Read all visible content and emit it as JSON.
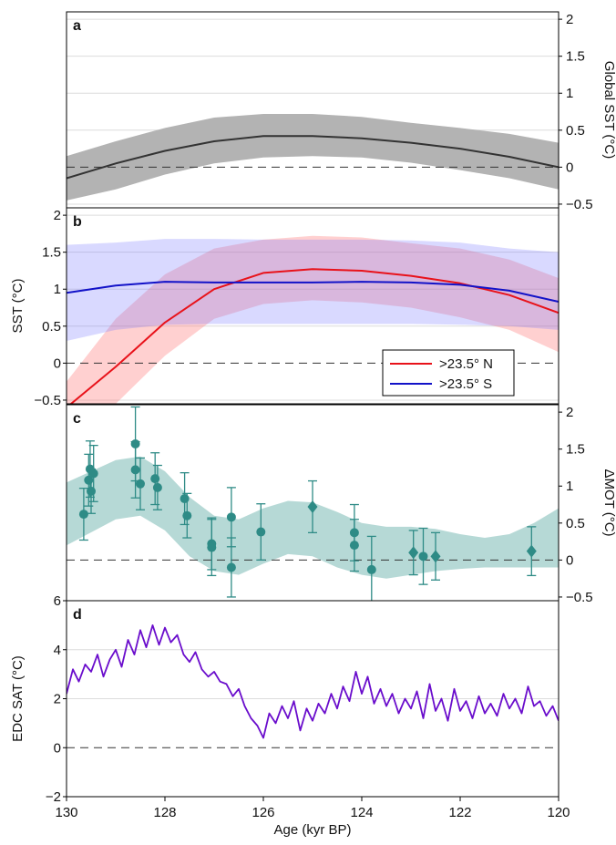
{
  "figure": {
    "xlabel": "Age (kyr BP)"
  },
  "chart_data": [
    {
      "panel": "a",
      "type": "line",
      "ylabel": "Global SST (°C)",
      "ylabel_side": "right",
      "ylim": [
        -0.55,
        2.1
      ],
      "yticks": [
        -0.5,
        0,
        0.5,
        1,
        1.5,
        2
      ],
      "xlim": [
        130,
        120
      ],
      "grid": true,
      "zero_line": true,
      "series": [
        {
          "color": "#333333",
          "band_color": "#b3b3b3",
          "x": [
            130,
            129,
            128,
            127,
            126,
            125,
            124,
            123,
            122,
            121,
            120
          ],
          "y": [
            -0.15,
            0.05,
            0.22,
            0.35,
            0.42,
            0.42,
            0.39,
            0.33,
            0.25,
            0.14,
            0.0
          ],
          "lower": [
            -0.45,
            -0.3,
            -0.1,
            0.05,
            0.13,
            0.15,
            0.13,
            0.06,
            -0.04,
            -0.15,
            -0.3
          ],
          "upper": [
            0.15,
            0.35,
            0.53,
            0.67,
            0.72,
            0.72,
            0.68,
            0.6,
            0.53,
            0.45,
            0.33
          ]
        }
      ]
    },
    {
      "panel": "b",
      "type": "line",
      "ylabel": "SST (°C)",
      "ylabel_side": "left",
      "ylim": [
        -0.55,
        2.1
      ],
      "yticks": [
        -0.5,
        0,
        0.5,
        1,
        1.5,
        2
      ],
      "xlim": [
        130,
        120
      ],
      "grid": true,
      "zero_line": true,
      "legend_position": "bottom-right",
      "series": [
        {
          "name": ">23.5° N",
          "color": "#e8121a",
          "band_color": "rgba(255,110,110,0.32)",
          "x": [
            130,
            129,
            128,
            127,
            126,
            125,
            124,
            123,
            122,
            121,
            120
          ],
          "y": [
            -0.6,
            -0.05,
            0.55,
            1.0,
            1.22,
            1.27,
            1.25,
            1.18,
            1.08,
            0.92,
            0.68
          ],
          "lower": [
            -0.95,
            -0.55,
            0.1,
            0.6,
            0.8,
            0.85,
            0.82,
            0.75,
            0.62,
            0.45,
            0.15
          ],
          "upper": [
            -0.25,
            0.6,
            1.2,
            1.55,
            1.67,
            1.72,
            1.7,
            1.62,
            1.55,
            1.4,
            1.15
          ]
        },
        {
          "name": ">23.5° S",
          "color": "#1212c8",
          "band_color": "rgba(120,120,255,0.28)",
          "x": [
            130,
            129,
            128,
            127,
            126,
            125,
            124,
            123,
            122,
            121,
            120
          ],
          "y": [
            0.95,
            1.05,
            1.1,
            1.09,
            1.09,
            1.09,
            1.1,
            1.09,
            1.06,
            0.98,
            0.83
          ],
          "lower": [
            0.3,
            0.45,
            0.52,
            0.53,
            0.53,
            0.53,
            0.53,
            0.53,
            0.52,
            0.5,
            0.45
          ],
          "upper": [
            1.6,
            1.63,
            1.68,
            1.68,
            1.67,
            1.67,
            1.67,
            1.66,
            1.63,
            1.55,
            1.5
          ]
        }
      ]
    },
    {
      "panel": "c",
      "type": "scatter",
      "ylabel": "ΔMOT (°C)",
      "ylabel_side": "right",
      "ylim": [
        -0.55,
        2.1
      ],
      "yticks": [
        -0.5,
        0,
        0.5,
        1,
        1.5,
        2
      ],
      "xlim": [
        130,
        120
      ],
      "grid": false,
      "zero_line": true,
      "point_color": "#2e8b86",
      "band": {
        "color": "#b6d9d6",
        "x": [
          130,
          129,
          128.5,
          128,
          127.5,
          127,
          126.5,
          126,
          125.5,
          125,
          124.5,
          124,
          123.5,
          123,
          122.5,
          122,
          121.5,
          121,
          120.5,
          120
        ],
        "lower": [
          0.2,
          0.55,
          0.6,
          0.4,
          0.05,
          -0.15,
          -0.2,
          -0.05,
          0.08,
          0.05,
          -0.1,
          -0.2,
          -0.25,
          -0.2,
          -0.15,
          -0.12,
          -0.1,
          -0.1,
          -0.1,
          -0.1
        ],
        "upper": [
          1.05,
          1.35,
          1.4,
          1.2,
          0.85,
          0.6,
          0.55,
          0.7,
          0.8,
          0.78,
          0.65,
          0.5,
          0.45,
          0.45,
          0.42,
          0.35,
          0.3,
          0.35,
          0.5,
          0.7
        ]
      },
      "points": [
        {
          "x": 129.65,
          "y": 0.62,
          "err": 0.35,
          "marker": "circle"
        },
        {
          "x": 129.55,
          "y": 1.08,
          "err": 0.35,
          "marker": "circle"
        },
        {
          "x": 129.52,
          "y": 1.23,
          "err": 0.38,
          "marker": "circle"
        },
        {
          "x": 129.5,
          "y": 0.93,
          "err": 0.3,
          "marker": "circle"
        },
        {
          "x": 129.45,
          "y": 1.17,
          "err": 0.38,
          "marker": "circle"
        },
        {
          "x": 128.6,
          "y": 1.57,
          "err": 0.5,
          "marker": "circle"
        },
        {
          "x": 128.6,
          "y": 1.22,
          "err": 0.38,
          "marker": "circle"
        },
        {
          "x": 128.5,
          "y": 1.03,
          "err": 0.35,
          "marker": "circle"
        },
        {
          "x": 128.2,
          "y": 1.1,
          "err": 0.35,
          "marker": "circle"
        },
        {
          "x": 128.15,
          "y": 0.98,
          "err": 0.3,
          "marker": "circle"
        },
        {
          "x": 127.6,
          "y": 0.83,
          "err": 0.35,
          "marker": "circle"
        },
        {
          "x": 127.55,
          "y": 0.6,
          "err": 0.3,
          "marker": "circle"
        },
        {
          "x": 127.05,
          "y": 0.22,
          "err": 0.35,
          "marker": "circle"
        },
        {
          "x": 127.05,
          "y": 0.17,
          "err": 0.38,
          "marker": "circle"
        },
        {
          "x": 126.65,
          "y": 0.58,
          "err": 0.4,
          "marker": "circle"
        },
        {
          "x": 126.65,
          "y": -0.1,
          "err": 0.4,
          "marker": "circle"
        },
        {
          "x": 126.05,
          "y": 0.38,
          "err": 0.38,
          "marker": "circle"
        },
        {
          "x": 125.0,
          "y": 0.72,
          "err": 0.35,
          "marker": "diamond"
        },
        {
          "x": 124.15,
          "y": 0.37,
          "err": 0.38,
          "marker": "circle"
        },
        {
          "x": 124.15,
          "y": 0.2,
          "err": 0.35,
          "marker": "circle"
        },
        {
          "x": 123.8,
          "y": -0.13,
          "err": 0.45,
          "marker": "circle"
        },
        {
          "x": 122.95,
          "y": 0.1,
          "err": 0.3,
          "marker": "diamond"
        },
        {
          "x": 122.75,
          "y": 0.05,
          "err": 0.38,
          "marker": "circle"
        },
        {
          "x": 122.5,
          "y": 0.05,
          "err": 0.32,
          "marker": "diamond"
        },
        {
          "x": 120.55,
          "y": 0.12,
          "err": 0.33,
          "marker": "diamond"
        }
      ]
    },
    {
      "panel": "d",
      "type": "line",
      "ylabel": "EDC SAT (°C)",
      "ylabel_side": "left",
      "ylim": [
        -2,
        6
      ],
      "yticks": [
        -2,
        0,
        2,
        4,
        6
      ],
      "xlim": [
        130,
        120
      ],
      "grid": true,
      "zero_line": true,
      "xticks": [
        130,
        128,
        126,
        124,
        122,
        120
      ],
      "series": [
        {
          "color": "#6a0dcc",
          "x": [
            130,
            129.87,
            129.75,
            129.62,
            129.5,
            129.37,
            129.25,
            129.12,
            129,
            128.88,
            128.75,
            128.62,
            128.5,
            128.38,
            128.25,
            128.12,
            128,
            127.88,
            127.75,
            127.62,
            127.5,
            127.38,
            127.25,
            127.12,
            127,
            126.88,
            126.75,
            126.62,
            126.5,
            126.38,
            126.25,
            126.12,
            126,
            125.88,
            125.75,
            125.62,
            125.5,
            125.38,
            125.25,
            125.12,
            125,
            124.88,
            124.75,
            124.62,
            124.5,
            124.38,
            124.25,
            124.12,
            124,
            123.88,
            123.75,
            123.62,
            123.5,
            123.38,
            123.25,
            123.12,
            123,
            122.88,
            122.75,
            122.62,
            122.5,
            122.38,
            122.25,
            122.12,
            122,
            121.88,
            121.75,
            121.62,
            121.5,
            121.38,
            121.25,
            121.12,
            121,
            120.88,
            120.75,
            120.62,
            120.5,
            120.38,
            120.25,
            120.12,
            120
          ],
          "y": [
            2.2,
            3.2,
            2.7,
            3.4,
            3.1,
            3.8,
            2.9,
            3.6,
            4.0,
            3.3,
            4.4,
            3.8,
            4.8,
            4.1,
            5.0,
            4.2,
            4.9,
            4.3,
            4.6,
            3.8,
            3.5,
            3.9,
            3.2,
            2.9,
            3.1,
            2.7,
            2.6,
            2.1,
            2.4,
            1.7,
            1.2,
            0.9,
            0.4,
            1.4,
            1.0,
            1.7,
            1.2,
            1.9,
            0.7,
            1.6,
            1.1,
            1.8,
            1.4,
            2.2,
            1.6,
            2.5,
            1.9,
            3.1,
            2.2,
            2.9,
            1.8,
            2.4,
            1.7,
            2.2,
            1.4,
            2.0,
            1.6,
            2.3,
            1.2,
            2.6,
            1.5,
            2.0,
            1.1,
            2.4,
            1.5,
            1.9,
            1.2,
            2.1,
            1.4,
            1.8,
            1.3,
            2.2,
            1.6,
            2.0,
            1.4,
            2.5,
            1.7,
            1.9,
            1.3,
            1.7,
            1.1
          ]
        }
      ]
    }
  ]
}
